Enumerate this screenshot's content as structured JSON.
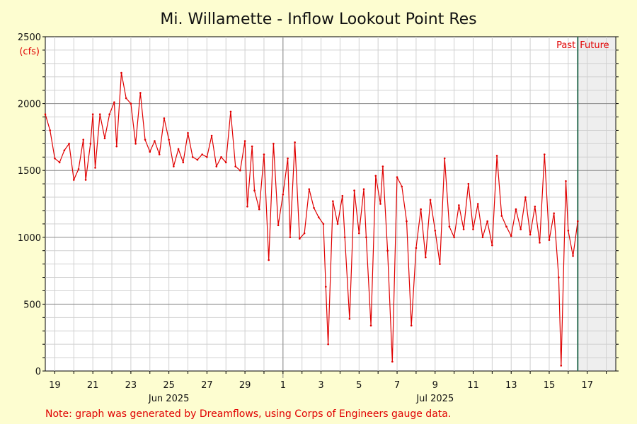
{
  "chart_data": {
    "type": "line",
    "title": "Mi. Willamette - Inflow Lookout Point Res",
    "ylabel": "(cfs)",
    "ylim": [
      0,
      2500
    ],
    "y_ticks": [
      "0",
      "500",
      "1000",
      "1500",
      "2000",
      "2500"
    ],
    "x_range": [
      "2025-06-18T12:00",
      "2025-07-18T12:00"
    ],
    "x_ticks": [
      {
        "date": "2025-06-19",
        "label": "19"
      },
      {
        "date": "2025-06-21",
        "label": "21"
      },
      {
        "date": "2025-06-23",
        "label": "23"
      },
      {
        "date": "2025-06-25",
        "label": "25"
      },
      {
        "date": "2025-06-27",
        "label": "27"
      },
      {
        "date": "2025-06-29",
        "label": "29"
      },
      {
        "date": "2025-07-01",
        "label": "1"
      },
      {
        "date": "2025-07-03",
        "label": "3"
      },
      {
        "date": "2025-07-05",
        "label": "5"
      },
      {
        "date": "2025-07-07",
        "label": "7"
      },
      {
        "date": "2025-07-09",
        "label": "9"
      },
      {
        "date": "2025-07-11",
        "label": "11"
      },
      {
        "date": "2025-07-13",
        "label": "13"
      },
      {
        "date": "2025-07-15",
        "label": "15"
      },
      {
        "date": "2025-07-17",
        "label": "17"
      }
    ],
    "month_labels": [
      {
        "date": "2025-06-25",
        "label": "Jun 2025"
      },
      {
        "date": "2025-07-09",
        "label": "Jul 2025"
      }
    ],
    "month_boundary": "2025-07-01",
    "now": "2025-07-16T12:00",
    "past_label": "Past",
    "future_label": "Future",
    "grid": true,
    "series": [
      {
        "color": "#e00000",
        "points": [
          [
            "2025-06-18T12:00",
            1920
          ],
          [
            "2025-06-18T18:00",
            1800
          ],
          [
            "2025-06-19T00:00",
            1590
          ],
          [
            "2025-06-19T06:00",
            1560
          ],
          [
            "2025-06-19T12:00",
            1650
          ],
          [
            "2025-06-19T18:00",
            1700
          ],
          [
            "2025-06-20T00:00",
            1430
          ],
          [
            "2025-06-20T06:00",
            1510
          ],
          [
            "2025-06-20T12:00",
            1730
          ],
          [
            "2025-06-20T15:00",
            1430
          ],
          [
            "2025-06-20T21:00",
            1700
          ],
          [
            "2025-06-21T00:00",
            1920
          ],
          [
            "2025-06-21T03:00",
            1520
          ],
          [
            "2025-06-21T09:00",
            1920
          ],
          [
            "2025-06-21T15:00",
            1740
          ],
          [
            "2025-06-21T21:00",
            1920
          ],
          [
            "2025-06-22T03:00",
            2010
          ],
          [
            "2025-06-22T06:00",
            1680
          ],
          [
            "2025-06-22T12:00",
            2230
          ],
          [
            "2025-06-22T18:00",
            2040
          ],
          [
            "2025-06-23T00:00",
            2000
          ],
          [
            "2025-06-23T06:00",
            1700
          ],
          [
            "2025-06-23T12:00",
            2080
          ],
          [
            "2025-06-23T18:00",
            1730
          ],
          [
            "2025-06-24T00:00",
            1640
          ],
          [
            "2025-06-24T06:00",
            1720
          ],
          [
            "2025-06-24T12:00",
            1620
          ],
          [
            "2025-06-24T18:00",
            1890
          ],
          [
            "2025-06-25T00:00",
            1730
          ],
          [
            "2025-06-25T06:00",
            1530
          ],
          [
            "2025-06-25T12:00",
            1660
          ],
          [
            "2025-06-25T18:00",
            1560
          ],
          [
            "2025-06-26T00:00",
            1780
          ],
          [
            "2025-06-26T06:00",
            1600
          ],
          [
            "2025-06-26T12:00",
            1580
          ],
          [
            "2025-06-26T18:00",
            1620
          ],
          [
            "2025-06-27T00:00",
            1600
          ],
          [
            "2025-06-27T06:00",
            1760
          ],
          [
            "2025-06-27T12:00",
            1530
          ],
          [
            "2025-06-27T18:00",
            1600
          ],
          [
            "2025-06-28T00:00",
            1560
          ],
          [
            "2025-06-28T06:00",
            1940
          ],
          [
            "2025-06-28T12:00",
            1530
          ],
          [
            "2025-06-28T18:00",
            1500
          ],
          [
            "2025-06-29T00:00",
            1720
          ],
          [
            "2025-06-29T03:00",
            1230
          ],
          [
            "2025-06-29T09:00",
            1680
          ],
          [
            "2025-06-29T12:00",
            1350
          ],
          [
            "2025-06-29T18:00",
            1210
          ],
          [
            "2025-06-30T00:00",
            1620
          ],
          [
            "2025-06-30T06:00",
            830
          ],
          [
            "2025-06-30T12:00",
            1700
          ],
          [
            "2025-06-30T18:00",
            1090
          ],
          [
            "2025-07-01T00:00",
            1320
          ],
          [
            "2025-07-01T06:00",
            1590
          ],
          [
            "2025-07-01T09:00",
            1000
          ],
          [
            "2025-07-01T15:00",
            1710
          ],
          [
            "2025-07-01T21:00",
            990
          ],
          [
            "2025-07-02T03:00",
            1030
          ],
          [
            "2025-07-02T09:00",
            1360
          ],
          [
            "2025-07-02T15:00",
            1220
          ],
          [
            "2025-07-02T21:00",
            1150
          ],
          [
            "2025-07-03T03:00",
            1100
          ],
          [
            "2025-07-03T06:00",
            630
          ],
          [
            "2025-07-03T09:00",
            200
          ],
          [
            "2025-07-03T15:00",
            1270
          ],
          [
            "2025-07-03T21:00",
            1100
          ],
          [
            "2025-07-04T03:00",
            1310
          ],
          [
            "2025-07-04T06:00",
            1000
          ],
          [
            "2025-07-04T12:00",
            390
          ],
          [
            "2025-07-04T18:00",
            1350
          ],
          [
            "2025-07-05T00:00",
            1030
          ],
          [
            "2025-07-05T06:00",
            1360
          ],
          [
            "2025-07-05T09:00",
            1000
          ],
          [
            "2025-07-05T15:00",
            340
          ],
          [
            "2025-07-05T21:00",
            1460
          ],
          [
            "2025-07-06T03:00",
            1250
          ],
          [
            "2025-07-06T06:00",
            1530
          ],
          [
            "2025-07-06T12:00",
            900
          ],
          [
            "2025-07-06T18:00",
            70
          ],
          [
            "2025-07-07T00:00",
            1450
          ],
          [
            "2025-07-07T06:00",
            1380
          ],
          [
            "2025-07-07T12:00",
            1120
          ],
          [
            "2025-07-07T18:00",
            340
          ],
          [
            "2025-07-08T00:00",
            920
          ],
          [
            "2025-07-08T06:00",
            1210
          ],
          [
            "2025-07-08T12:00",
            850
          ],
          [
            "2025-07-08T18:00",
            1280
          ],
          [
            "2025-07-09T00:00",
            1050
          ],
          [
            "2025-07-09T06:00",
            800
          ],
          [
            "2025-07-09T12:00",
            1590
          ],
          [
            "2025-07-09T18:00",
            1080
          ],
          [
            "2025-07-10T00:00",
            1000
          ],
          [
            "2025-07-10T06:00",
            1240
          ],
          [
            "2025-07-10T12:00",
            1060
          ],
          [
            "2025-07-10T18:00",
            1400
          ],
          [
            "2025-07-11T00:00",
            1060
          ],
          [
            "2025-07-11T06:00",
            1250
          ],
          [
            "2025-07-11T12:00",
            1000
          ],
          [
            "2025-07-11T18:00",
            1120
          ],
          [
            "2025-07-12T00:00",
            940
          ],
          [
            "2025-07-12T06:00",
            1610
          ],
          [
            "2025-07-12T12:00",
            1160
          ],
          [
            "2025-07-12T18:00",
            1080
          ],
          [
            "2025-07-13T00:00",
            1010
          ],
          [
            "2025-07-13T06:00",
            1210
          ],
          [
            "2025-07-13T12:00",
            1060
          ],
          [
            "2025-07-13T18:00",
            1300
          ],
          [
            "2025-07-14T00:00",
            1020
          ],
          [
            "2025-07-14T06:00",
            1230
          ],
          [
            "2025-07-14T12:00",
            960
          ],
          [
            "2025-07-14T18:00",
            1620
          ],
          [
            "2025-07-15T00:00",
            980
          ],
          [
            "2025-07-15T06:00",
            1180
          ],
          [
            "2025-07-15T12:00",
            700
          ],
          [
            "2025-07-15T15:00",
            40
          ],
          [
            "2025-07-15T21:00",
            1420
          ],
          [
            "2025-07-16T00:00",
            1050
          ],
          [
            "2025-07-16T06:00",
            860
          ],
          [
            "2025-07-16T12:00",
            1120
          ]
        ]
      }
    ]
  },
  "note": "Note: graph was generated by Dreamflows, using Corps of Engineers gauge data."
}
